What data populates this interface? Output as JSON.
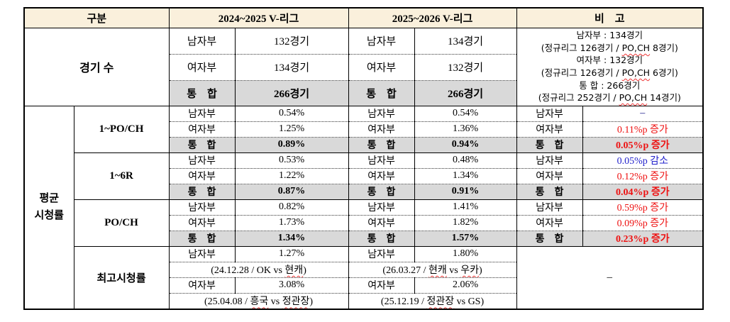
{
  "colors": {
    "header_bg": "#faf0dc",
    "total_row_bg": "#d9d9d9",
    "increase_red": "#ee1111",
    "decrease_blue": "#2222cc",
    "dash_navy": "#00007f",
    "border_black": "#000000"
  },
  "header": {
    "category": "구분",
    "league_2024": "2024~2025 V-리그",
    "league_2025": "2025~2026 V-리그",
    "note": "비　고"
  },
  "games": {
    "label": "경기 수",
    "rows": [
      {
        "label": "남자부",
        "v2024": "132경기",
        "v2025": "134경기"
      },
      {
        "label": "여자부",
        "v2024": "134경기",
        "v2025": "132경기"
      },
      {
        "label": "통　합",
        "v2024": "266경기",
        "v2025": "266경기"
      }
    ],
    "note_lines": [
      {
        "text": "남자부 : 134경기"
      },
      {
        "rich": [
          {
            "t": "(정규리그 126경기 / "
          },
          {
            "t": "PO,CH",
            "sq": true
          },
          {
            "t": " 8경기)"
          }
        ]
      },
      {
        "text": "여자부 : 132경기"
      },
      {
        "rich": [
          {
            "t": "(정규리그 126경기 / "
          },
          {
            "t": "PO,CH",
            "sq": true
          },
          {
            "t": " 6경기)"
          }
        ]
      },
      {
        "text": "통 합 : 266경기"
      },
      {
        "rich": [
          {
            "t": "(정규리그 252경기 / "
          },
          {
            "t": "PO,CH",
            "sq": true
          },
          {
            "t": " 14경기)"
          }
        ]
      }
    ]
  },
  "avg": {
    "label_lines": [
      "평균",
      "시청률"
    ],
    "groups": [
      {
        "label": "1~PO/CH",
        "rows": [
          {
            "label": "남자부",
            "v2024": "0.54%",
            "v2025": "0.54%",
            "note": "–"
          },
          {
            "label": "여자부",
            "v2024": "1.25%",
            "v2025": "1.36%",
            "note": "0.11%p 증가"
          },
          {
            "label": "통　합",
            "v2024": "0.89%",
            "v2025": "0.94%",
            "note": "0.05%p 증가"
          }
        ]
      },
      {
        "label": "1~6R",
        "rows": [
          {
            "label": "남자부",
            "v2024": "0.53%",
            "v2025": "0.48%",
            "note": "0.05%p 감소"
          },
          {
            "label": "여자부",
            "v2024": "1.22%",
            "v2025": "1.34%",
            "note": "0.12%p 증가"
          },
          {
            "label": "통　합",
            "v2024": "0.87%",
            "v2025": "0.91%",
            "note": "0.04%p 증가"
          }
        ]
      },
      {
        "label": "PO/CH",
        "rows": [
          {
            "label": "남자부",
            "v2024": "0.82%",
            "v2025": "1.41%",
            "note": "0.59%p 증가"
          },
          {
            "label": "여자부",
            "v2024": "1.73%",
            "v2025": "1.82%",
            "note": "0.09%p 증가"
          },
          {
            "label": "통　합",
            "v2024": "1.34%",
            "v2025": "1.57%",
            "note": "0.23%p 증가"
          }
        ]
      }
    ]
  },
  "record": {
    "label": "최고시청률",
    "men_label": "남자부",
    "women_label": "여자부",
    "v2024_men": "1.27%",
    "date2024_men": [
      {
        "t": "(24.12.28 / OK vs "
      },
      {
        "t": "현캐",
        "sq": true
      },
      {
        "t": ")"
      }
    ],
    "v2024_women": "3.08%",
    "date2024_women": [
      {
        "t": "(25.04.08 / "
      },
      {
        "t": "흥국",
        "sq": true
      },
      {
        "t": " vs "
      },
      {
        "t": "정관장",
        "sq": true
      },
      {
        "t": ")"
      }
    ],
    "v2025_men": "1.80%",
    "date2025_men": [
      {
        "t": "(26.03.27 / "
      },
      {
        "t": "현캐",
        "sq": true
      },
      {
        "t": " vs "
      },
      {
        "t": "우카",
        "sq": true
      },
      {
        "t": ")"
      }
    ],
    "v2025_women": "2.06%",
    "date2025_women": [
      {
        "t": "(25.12.19 / "
      },
      {
        "t": "정관장",
        "sq": true
      },
      {
        "t": " vs GS)"
      }
    ],
    "note": "–"
  }
}
